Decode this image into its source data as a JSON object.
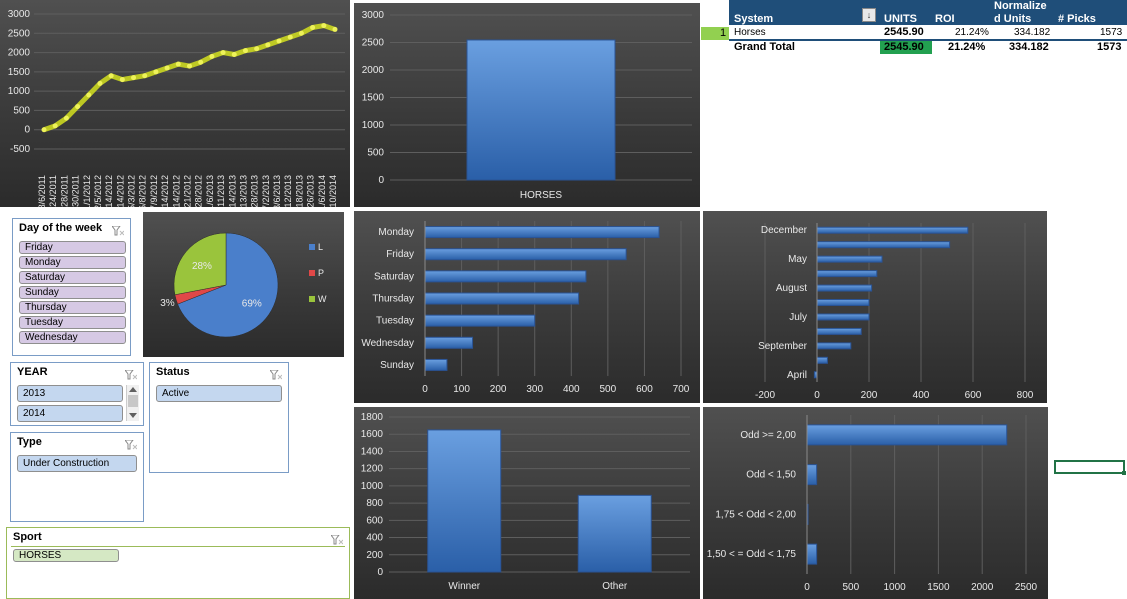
{
  "pivot": {
    "headers": {
      "system": "System",
      "units": "UNITS",
      "roi": "ROI",
      "normalize_1": "Normalize",
      "normalize_2": "d Units",
      "picks": "# Picks"
    },
    "row": {
      "rank": "1",
      "system": "Horses",
      "units": "2545.90",
      "roi": "21.24%",
      "normalized": "334.182",
      "picks": "1573"
    },
    "total": {
      "label": "Grand Total",
      "units": "2545.90",
      "roi": "21.24%",
      "normalized": "334.182",
      "picks": "1573"
    }
  },
  "slicers": {
    "day_of_week": {
      "title": "Day of the week",
      "items": [
        "Friday",
        "Monday",
        "Saturday",
        "Sunday",
        "Thursday",
        "Tuesday",
        "Wednesday"
      ]
    },
    "year": {
      "title": "YEAR",
      "items": [
        "2013",
        "2014"
      ]
    },
    "status": {
      "title": "Status",
      "items": [
        "Active"
      ]
    },
    "type": {
      "title": "Type",
      "items": [
        "Under Construction"
      ]
    },
    "sport": {
      "title": "Sport",
      "items": [
        "HORSES"
      ]
    }
  },
  "chart_data": [
    {
      "type": "line",
      "x": [
        "8/6/2011",
        "9/24/2011",
        "10/28/2011",
        "11/30/2011",
        "1/1/2012",
        "2/5/2012",
        "3/14/2012",
        "4/14/2012",
        "5/3/2012",
        "6/8/2012",
        "7/9/2012",
        "8/14/2012",
        "9/14/2012",
        "10/21/2012",
        "11/28/2012",
        "1/6/2013",
        "2/11/2013",
        "3/14/2013",
        "4/13/2013",
        "5/28/2013",
        "7/2/2013",
        "8/6/2013",
        "9/12/2013",
        "10/18/2013",
        "11/26/2013",
        "1/6/2014",
        "2/10/2014"
      ],
      "series": [
        {
          "values": [
            0,
            100,
            300,
            600,
            900,
            1200,
            1400,
            1300,
            1350,
            1400,
            1500,
            1600,
            1700,
            1650,
            1750,
            1900,
            2000,
            1950,
            2050,
            2100,
            2200,
            2300,
            2400,
            2500,
            2650,
            2700,
            2600
          ]
        }
      ],
      "ylim": [
        -500,
        3000
      ],
      "yticks": [
        "3000",
        "2500",
        "2000",
        "1500",
        "1000",
        "500",
        "0",
        "-500"
      ]
    },
    {
      "type": "bar",
      "categories": [
        "HORSES"
      ],
      "values": [
        2546
      ],
      "ylim": [
        0,
        3000
      ],
      "yticks": [
        "3000",
        "2500",
        "2000",
        "1500",
        "1000",
        "500",
        "0"
      ]
    },
    {
      "type": "pie",
      "categories": [
        "L",
        "P",
        "W"
      ],
      "values": [
        69,
        3,
        28
      ],
      "labels": [
        "69%",
        "3%",
        "28%"
      ],
      "colors": [
        "#4a7fcb",
        "#e04848",
        "#9ac43c"
      ]
    },
    {
      "type": "bar",
      "orientation": "horizontal",
      "categories": [
        "Monday",
        "Friday",
        "Saturday",
        "Thursday",
        "Tuesday",
        "Wednesday",
        "Sunday"
      ],
      "values": [
        640,
        550,
        440,
        420,
        300,
        130,
        60
      ],
      "xlim": [
        0,
        700
      ],
      "xticks": [
        "0",
        "100",
        "200",
        "300",
        "400",
        "500",
        "600",
        "700"
      ]
    },
    {
      "type": "bar",
      "orientation": "horizontal",
      "categories": [
        "December",
        "",
        "May",
        "",
        "August",
        "",
        "July",
        "",
        "September",
        "",
        "April"
      ],
      "values": [
        580,
        510,
        250,
        230,
        210,
        200,
        200,
        170,
        130,
        40,
        -10
      ],
      "xlim": [
        -200,
        800
      ],
      "xticks": [
        "-200",
        "0",
        "200",
        "400",
        "600",
        "800"
      ]
    },
    {
      "type": "bar",
      "categories": [
        "Winner",
        "Other"
      ],
      "values": [
        1650,
        890
      ],
      "ylim": [
        0,
        1800
      ],
      "yticks": [
        "1800",
        "1600",
        "1400",
        "1200",
        "1000",
        "800",
        "600",
        "400",
        "200",
        "0"
      ]
    },
    {
      "type": "bar",
      "orientation": "horizontal",
      "categories": [
        "Odd >= 2,00",
        "Odd < 1,50",
        "1,75 < Odd < 2,00",
        "1,50 < = Odd < 1,75"
      ],
      "values": [
        2280,
        110,
        0,
        110
      ],
      "xlim": [
        0,
        2500
      ],
      "xticks": [
        "0",
        "500",
        "1000",
        "1500",
        "2000",
        "2500"
      ]
    }
  ],
  "colors": {
    "bar": "#3c78c8",
    "pivot_header": "#1f4e79",
    "line": "#d4e01e",
    "slicer_day": "#d6c9e4",
    "slicer_blue": "#c4d7ef",
    "slicer_green": "#d5e8c4",
    "units_highlight": "#22a050"
  }
}
